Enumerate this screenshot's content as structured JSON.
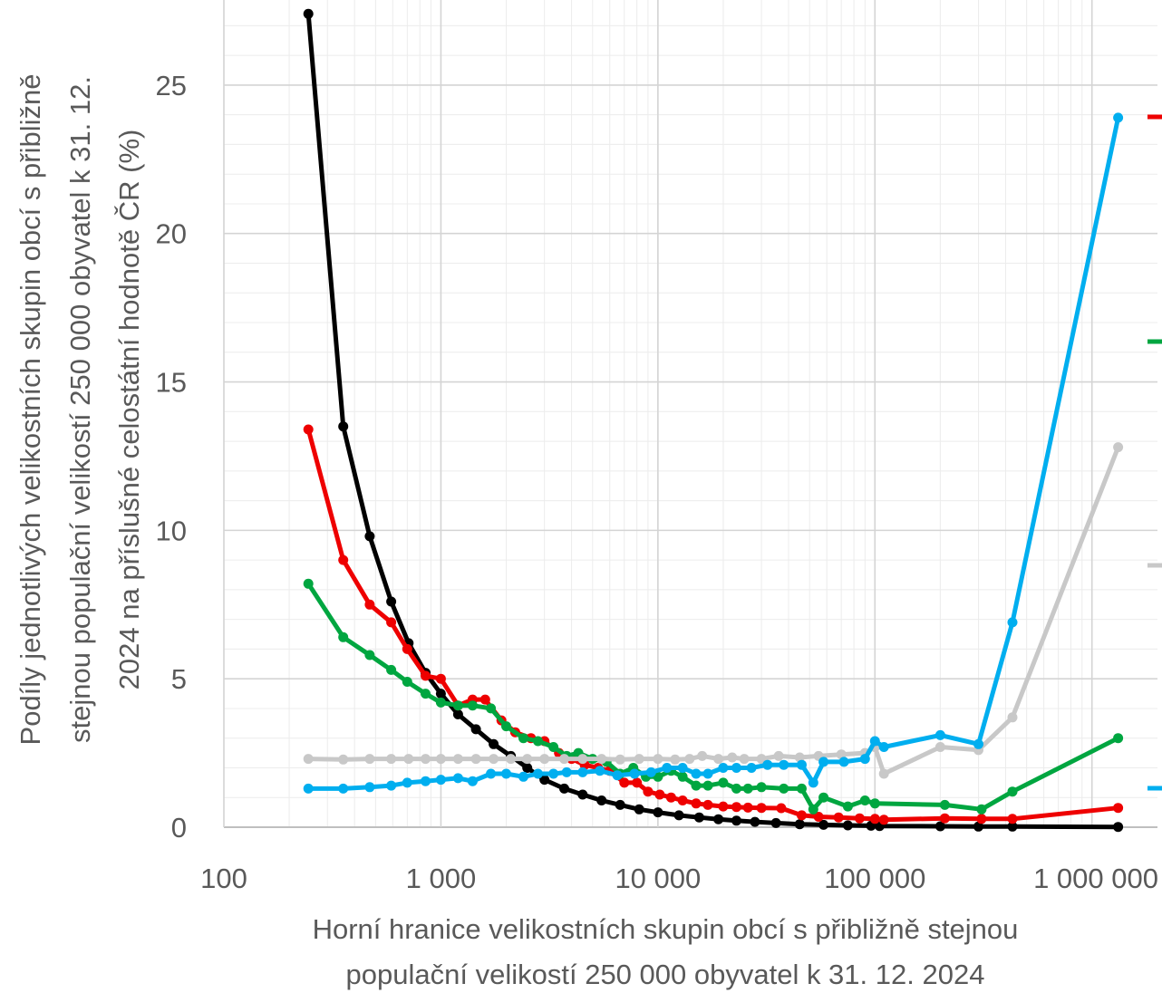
{
  "chart_data": {
    "type": "line",
    "xscale": "log",
    "xlim": [
      100,
      1300000
    ],
    "ylim": [
      0,
      27.5
    ],
    "grid": true,
    "legend": "right",
    "xlabel_lines": [
      "Horní hranice velikostních skupin obcí s přibližně stejnou",
      "populační velikostí 250 000 obyvatel k 31. 12. 2024"
    ],
    "ylabel_lines": [
      "Podíly jednotlivých velikostních skupin obcí s přibližně",
      "stejnou populační velikostí 250 000 obyvatel k 31. 12.",
      "2024 na příslušné celostátní hodnotě ČR (%)"
    ],
    "x_ticks": [
      {
        "value": 100,
        "label": "100"
      },
      {
        "value": 1000,
        "label": "1 000"
      },
      {
        "value": 10000,
        "label": "10 000"
      },
      {
        "value": 100000,
        "label": "100 000"
      },
      {
        "value": 1000000,
        "label": "1 000 000"
      }
    ],
    "y_ticks": [
      {
        "value": 0,
        "label": "0"
      },
      {
        "value": 5,
        "label": "5"
      },
      {
        "value": 10,
        "label": "10"
      },
      {
        "value": 15,
        "label": "15"
      },
      {
        "value": 20,
        "label": "20"
      },
      {
        "value": 25,
        "label": "25"
      }
    ],
    "series": [
      {
        "color": "#000000",
        "x": [
          245,
          355,
          470,
          590,
          710,
          850,
          1000,
          1200,
          1450,
          1750,
          2100,
          2500,
          3000,
          3700,
          4500,
          5500,
          6700,
          8200,
          10000,
          12500,
          15500,
          19000,
          23000,
          28000,
          35000,
          45000,
          58000,
          75000,
          96000,
          105000,
          200000,
          300000,
          430000,
          1320000
        ],
        "y": [
          27.4,
          13.5,
          9.8,
          7.6,
          6.2,
          5.2,
          4.5,
          3.8,
          3.3,
          2.8,
          2.4,
          2.0,
          1.6,
          1.3,
          1.1,
          0.9,
          0.75,
          0.6,
          0.5,
          0.4,
          0.33,
          0.27,
          0.22,
          0.18,
          0.14,
          0.1,
          0.08,
          0.06,
          0.05,
          0.04,
          0.03,
          0.02,
          0.02,
          0.01
        ]
      },
      {
        "color": "#ee0000",
        "x": [
          245,
          355,
          470,
          590,
          700,
          850,
          1000,
          1200,
          1400,
          1600,
          1900,
          2200,
          2600,
          3000,
          3500,
          4000,
          4600,
          5300,
          6000,
          7000,
          8000,
          9000,
          10200,
          11500,
          13000,
          15000,
          17000,
          20000,
          23000,
          26000,
          30000,
          37000,
          46000,
          55000,
          68000,
          85000,
          100000,
          110000,
          210000,
          310000,
          430000,
          1320000
        ],
        "y": [
          13.4,
          9.0,
          7.5,
          6.9,
          6.0,
          5.1,
          5.0,
          4.1,
          4.3,
          4.3,
          3.6,
          3.2,
          3.0,
          2.9,
          2.5,
          2.3,
          2.1,
          2.0,
          1.9,
          1.5,
          1.5,
          1.2,
          1.1,
          1.0,
          0.9,
          0.8,
          0.75,
          0.7,
          0.68,
          0.66,
          0.65,
          0.64,
          0.4,
          0.35,
          0.33,
          0.3,
          0.28,
          0.25,
          0.3,
          0.28,
          0.28,
          0.65
        ]
      },
      {
        "color": "#00a640",
        "x": [
          245,
          355,
          470,
          590,
          700,
          850,
          1000,
          1200,
          1400,
          1700,
          2000,
          2400,
          2800,
          3300,
          3800,
          4300,
          5000,
          5800,
          6700,
          7700,
          8800,
          10000,
          11500,
          13000,
          15000,
          17000,
          20000,
          23000,
          26000,
          30000,
          38000,
          46000,
          52000,
          58000,
          75000,
          90000,
          100000,
          210000,
          310000,
          430000,
          1320000
        ],
        "y": [
          8.2,
          6.4,
          5.8,
          5.3,
          4.9,
          4.5,
          4.2,
          4.1,
          4.1,
          4.0,
          3.4,
          3.0,
          2.9,
          2.7,
          2.4,
          2.5,
          2.3,
          2.2,
          1.8,
          2.0,
          1.7,
          1.7,
          1.9,
          1.7,
          1.4,
          1.4,
          1.5,
          1.3,
          1.3,
          1.35,
          1.3,
          1.3,
          0.6,
          1.0,
          0.7,
          0.9,
          0.8,
          0.75,
          0.6,
          1.2,
          3.0
        ]
      },
      {
        "color": "#c8c8c8",
        "x": [
          245,
          355,
          470,
          590,
          710,
          850,
          1000,
          1200,
          1450,
          1750,
          2100,
          2500,
          3000,
          3700,
          4500,
          5500,
          6700,
          8200,
          10000,
          12000,
          14000,
          16000,
          19000,
          22000,
          25000,
          30000,
          36000,
          45000,
          55000,
          70000,
          90000,
          100000,
          110000,
          200000,
          300000,
          430000,
          1320000
        ],
        "y": [
          2.3,
          2.28,
          2.3,
          2.3,
          2.3,
          2.3,
          2.3,
          2.3,
          2.3,
          2.3,
          2.3,
          2.3,
          2.3,
          2.3,
          2.3,
          2.3,
          2.28,
          2.3,
          2.3,
          2.28,
          2.3,
          2.4,
          2.3,
          2.35,
          2.3,
          2.3,
          2.4,
          2.35,
          2.4,
          2.45,
          2.5,
          2.7,
          1.8,
          2.7,
          2.6,
          3.7,
          12.8
        ]
      },
      {
        "color": "#00aeef",
        "x": [
          245,
          355,
          470,
          590,
          700,
          850,
          1000,
          1200,
          1400,
          1700,
          2000,
          2400,
          2800,
          3300,
          3800,
          4500,
          5400,
          6500,
          7800,
          9300,
          11000,
          13000,
          15000,
          17000,
          20000,
          23000,
          27000,
          32000,
          38000,
          46000,
          52000,
          58000,
          72000,
          90000,
          100000,
          110000,
          200000,
          300000,
          430000,
          1320000
        ],
        "y": [
          1.3,
          1.3,
          1.35,
          1.4,
          1.5,
          1.55,
          1.6,
          1.65,
          1.55,
          1.8,
          1.8,
          1.7,
          1.8,
          1.8,
          1.85,
          1.85,
          1.9,
          1.75,
          1.8,
          1.85,
          2.0,
          2.0,
          1.8,
          1.8,
          2.0,
          2.0,
          2.0,
          2.1,
          2.1,
          2.1,
          1.5,
          2.2,
          2.2,
          2.3,
          2.9,
          2.7,
          3.1,
          2.8,
          6.9,
          23.9
        ]
      }
    ],
    "legend_swatches": [
      "#ee0000",
      "#00a640",
      "#c8c8c8",
      "#00aeef"
    ]
  }
}
